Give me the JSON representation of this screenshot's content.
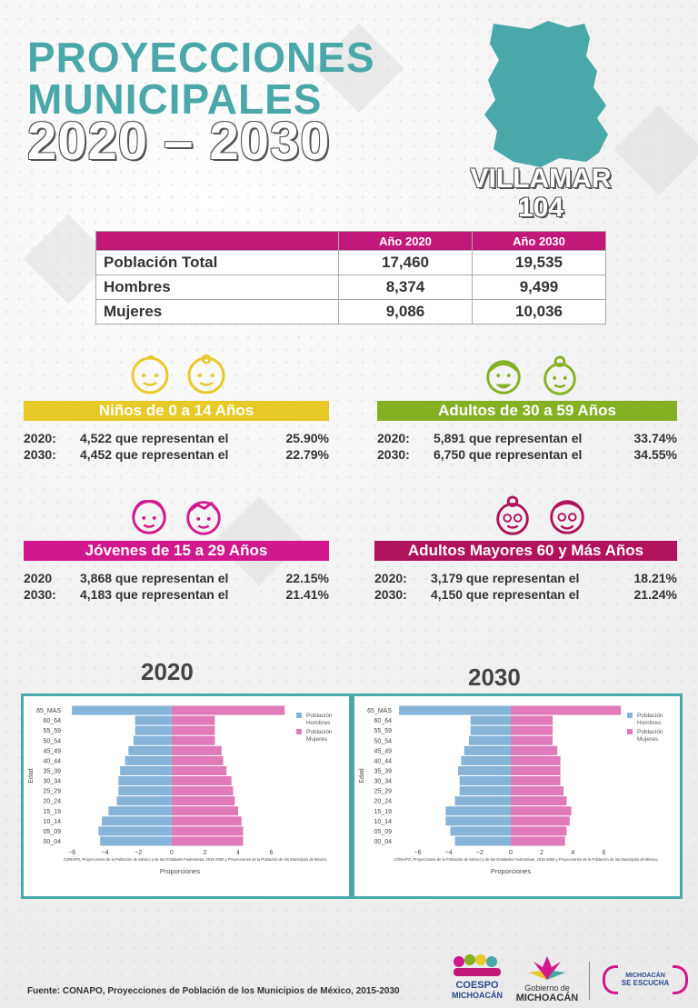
{
  "header": {
    "title_line1": "PROYECCIONES",
    "title_line2": "MUNICIPALES",
    "years": "2020 – 2030"
  },
  "municipality": {
    "name": "VILLAMAR",
    "number": "104"
  },
  "population_table": {
    "headers": [
      "",
      "Año 2020",
      "Año 2030"
    ],
    "rows": [
      {
        "label": "Población Total",
        "y2020": "17,460",
        "y2030": "19,535"
      },
      {
        "label": "Hombres",
        "y2020": "8,374",
        "y2030": "9,499"
      },
      {
        "label": "Mujeres",
        "y2020": "9,086",
        "y2030": "10,036"
      }
    ]
  },
  "age_groups": [
    {
      "title": "Niños de 0 a 14 Años",
      "color": "#e7c928",
      "rows": [
        {
          "year": "2020:",
          "text": "4,522 que representan el",
          "pct": "25.90%"
        },
        {
          "year": "2030:",
          "text": "4,452 que representan el",
          "pct": "22.79%"
        }
      ]
    },
    {
      "title": "Adultos de 30 a 59 Años",
      "color": "#86b024",
      "rows": [
        {
          "year": "2020:",
          "text": "5,891 que representan el",
          "pct": "33.74%"
        },
        {
          "year": "2030:",
          "text": "6,750 que representan el",
          "pct": "34.55%"
        }
      ]
    },
    {
      "title": "Jóvenes de 15 a 29 Años",
      "color": "#d1198c",
      "rows": [
        {
          "year": "2020",
          "text": "3,868 que representan el",
          "pct": "22.15%"
        },
        {
          "year": "2030:",
          "text": "4,183 que representan el",
          "pct": "21.41%"
        }
      ]
    },
    {
      "title": "Adultos Mayores  60 y Más Años",
      "color": "#b0125c",
      "rows": [
        {
          "year": "2020:",
          "text": "3,179 que representan el",
          "pct": "18.21%"
        },
        {
          "year": "2030:",
          "text": "4,150 que representan el",
          "pct": "21.24%"
        }
      ]
    }
  ],
  "icons": [
    "baby-boy-icon",
    "baby-girl-icon",
    "adult-man-icon",
    "adult-woman-icon",
    "young-woman-icon",
    "young-man-icon",
    "elderly-woman-icon",
    "elderly-man-icon"
  ],
  "chart_data": [
    {
      "type": "bar",
      "orientation": "horizontal-population-pyramid",
      "title": "2020",
      "categories": [
        "00_04",
        "05_09",
        "10_14",
        "15_19",
        "20_24",
        "25_29",
        "30_34",
        "35_39",
        "40_44",
        "45_49",
        "50_54",
        "55_59",
        "60_64",
        "65_MAS"
      ],
      "series": [
        {
          "name": "Población Hombres",
          "color": "#86b4d8",
          "values": [
            -4.3,
            -4.4,
            -4.2,
            -3.8,
            -3.3,
            -3.2,
            -3.2,
            -3.1,
            -2.8,
            -2.6,
            -2.3,
            -2.2,
            -2.2,
            -6.0
          ]
        },
        {
          "name": "Población Mujeres",
          "color": "#e07ab8",
          "values": [
            4.3,
            4.3,
            4.2,
            4.0,
            3.8,
            3.7,
            3.6,
            3.3,
            3.1,
            3.0,
            2.6,
            2.6,
            2.6,
            6.8
          ]
        }
      ],
      "xlabel": "Proporciones",
      "ylabel": "Edad",
      "xticks": [
        "−6",
        "−4",
        "−2",
        "0",
        "2",
        "4",
        "6"
      ],
      "xlim": [
        -6.5,
        7.5
      ],
      "legend_title": "Población",
      "legend": [
        "Hombres",
        "Mujeres"
      ],
      "note": "CONAPO, Proyecciones de la Población de México y de las Entidades Federativas, 2016-2050 y Proyecciones de la Población de los Municipios de México,"
    },
    {
      "type": "bar",
      "orientation": "horizontal-population-pyramid",
      "title": "2030",
      "categories": [
        "00_04",
        "05_09",
        "10_14",
        "15_19",
        "20_24",
        "25_29",
        "30_34",
        "35_39",
        "40_44",
        "45_49",
        "50_54",
        "55_59",
        "60_64",
        "65_MAS"
      ],
      "series": [
        {
          "name": "Población Hombres",
          "color": "#86b4d8",
          "values": [
            -3.6,
            -3.9,
            -4.2,
            -4.2,
            -3.6,
            -3.3,
            -3.3,
            -3.4,
            -3.2,
            -3.0,
            -2.7,
            -2.6,
            -2.6,
            -7.2
          ]
        },
        {
          "name": "Población Mujeres",
          "color": "#e07ab8",
          "values": [
            3.5,
            3.6,
            3.8,
            3.9,
            3.6,
            3.4,
            3.2,
            3.2,
            3.2,
            3.0,
            2.7,
            2.7,
            2.7,
            7.1
          ]
        }
      ],
      "xlabel": "Proporciones",
      "ylabel": "Edad",
      "xticks": [
        "−6",
        "−4",
        "−2",
        "0",
        "2",
        "4",
        "6"
      ],
      "xlim": [
        -7.5,
        7.5
      ],
      "legend_title": "Población",
      "legend": [
        "Hombres",
        "Mujeres"
      ],
      "note": "CONAPO, Proyecciones de la Población de México y de las Entidades Federativas, 2016-2050 y Proyecciones de la Población de los Municipios de México,"
    }
  ],
  "footer": {
    "source": "Fuente: CONAPO, Proyecciones de Población de los Municipios de México, 2015-2030",
    "logo1_line1": "COESPO",
    "logo1_line2": "MICHOACÁN",
    "logo2_line1": "Gobierno de",
    "logo2_line2": "MICHOACÁN",
    "logo3_line1": "MICHOACÁN",
    "logo3_line2": "SE ESCUCHA"
  }
}
